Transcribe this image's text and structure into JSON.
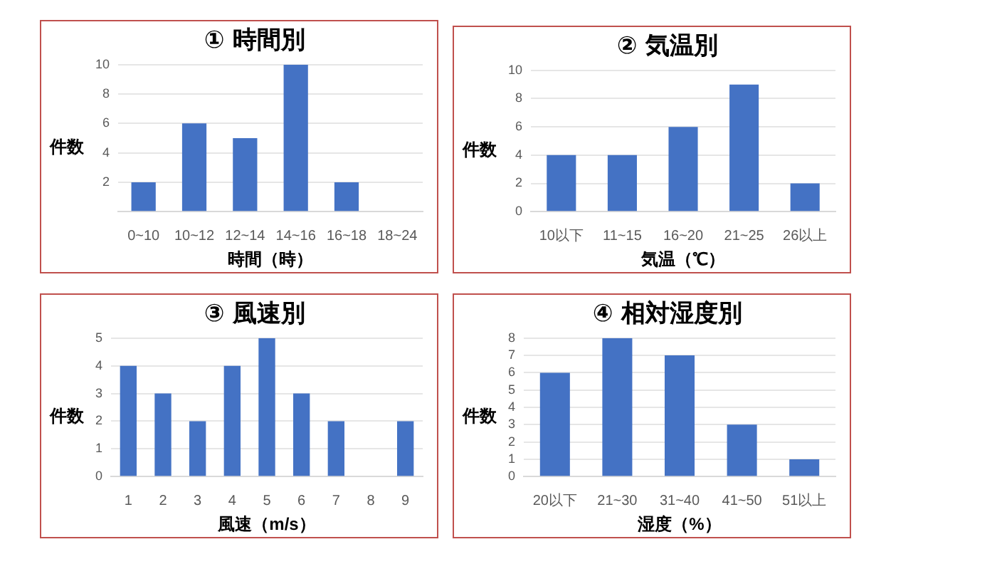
{
  "chart_data": [
    {
      "type": "bar",
      "title": "① 時間別",
      "xlabel": "時間（時）",
      "ylabel": "件数",
      "categories": [
        "0~10",
        "10~12",
        "12~14",
        "14~16",
        "16~18",
        "18~24"
      ],
      "values": [
        2,
        6,
        5,
        10,
        2,
        0
      ],
      "color": "#4472c4",
      "ylim": [
        0,
        10
      ],
      "yticks": [
        {
          "value": 0,
          "label": null
        },
        2,
        4,
        6,
        8,
        10
      ],
      "grid": "y",
      "legend": false
    },
    {
      "type": "bar",
      "title": "② 気温別",
      "xlabel": "気温（℃）",
      "ylabel": "件数",
      "categories": [
        "10以下",
        "11~15",
        "16~20",
        "21~25",
        "26以上"
      ],
      "values": [
        4,
        4,
        6,
        9,
        2
      ],
      "color": "#4472c4",
      "ylim": [
        0,
        10
      ],
      "yticks": [
        0,
        2,
        4,
        6,
        8,
        10
      ],
      "grid": "y",
      "legend": false
    },
    {
      "type": "bar",
      "title": "③ 風速別",
      "xlabel": "風速（m/s）",
      "ylabel": "件数",
      "categories": [
        "1",
        "2",
        "3",
        "4",
        "5",
        "6",
        "7",
        "8",
        "9"
      ],
      "values": [
        4,
        3,
        2,
        4,
        5,
        3,
        2,
        0,
        2
      ],
      "color": "#4472c4",
      "ylim": [
        0,
        5
      ],
      "yticks": [
        0,
        1,
        2,
        3,
        4,
        5
      ],
      "grid": "y",
      "legend": false
    },
    {
      "type": "bar",
      "title": "④ 相対湿度別",
      "xlabel": "湿度（%）",
      "ylabel": "件数",
      "categories": [
        "20以下",
        "21~30",
        "31~40",
        "41~50",
        "51以上"
      ],
      "values": [
        6,
        8,
        7,
        3,
        1
      ],
      "color": "#4472c4",
      "ylim": [
        0,
        8
      ],
      "yticks": [
        0,
        1,
        2,
        3,
        4,
        5,
        6,
        7,
        8
      ],
      "grid": "y",
      "legend": false
    }
  ]
}
